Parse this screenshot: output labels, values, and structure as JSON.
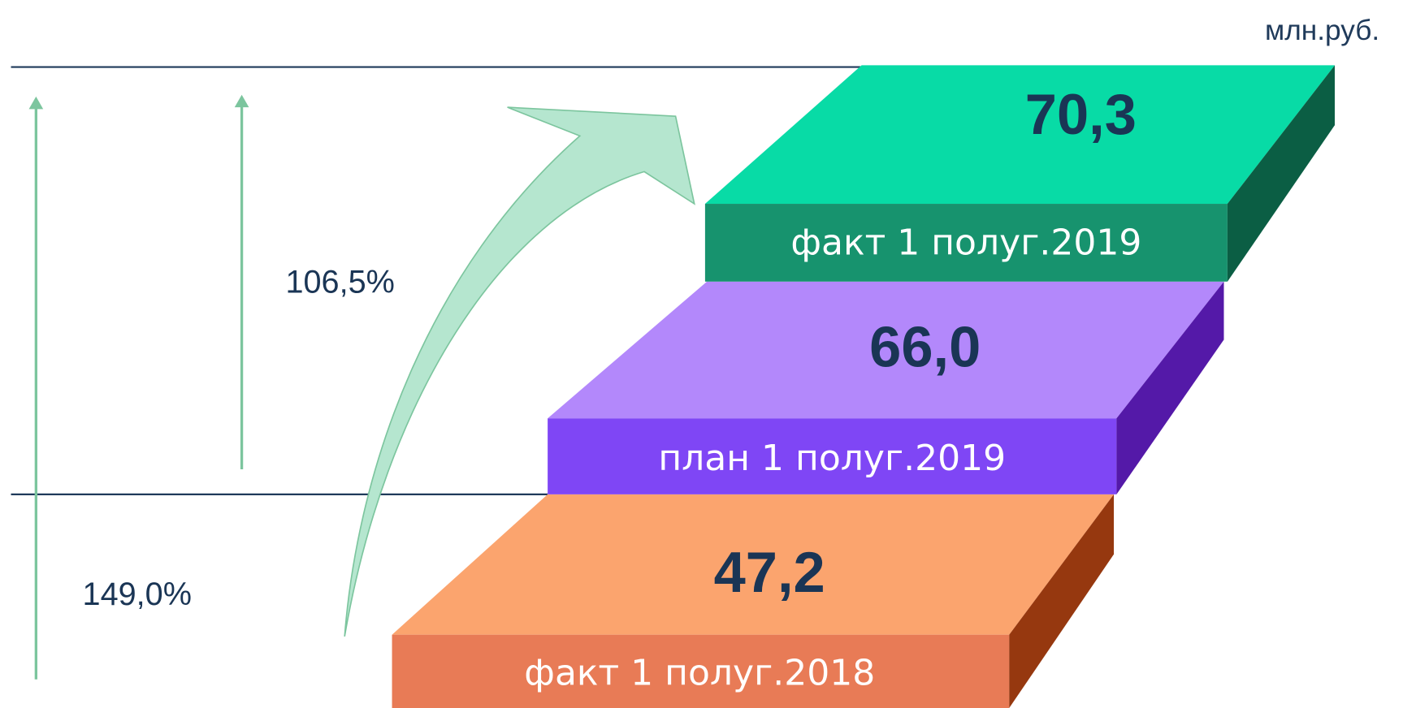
{
  "unit": "млн.руб.",
  "steps": [
    {
      "value": "70,3",
      "label": "факт 1 полуг.2019"
    },
    {
      "value": "66,0",
      "label": "план 1 полуг.2019"
    },
    {
      "value": "47,2",
      "label": "факт 1 полуг.2018"
    }
  ],
  "growth": [
    "106,5%",
    "149,0%"
  ]
}
